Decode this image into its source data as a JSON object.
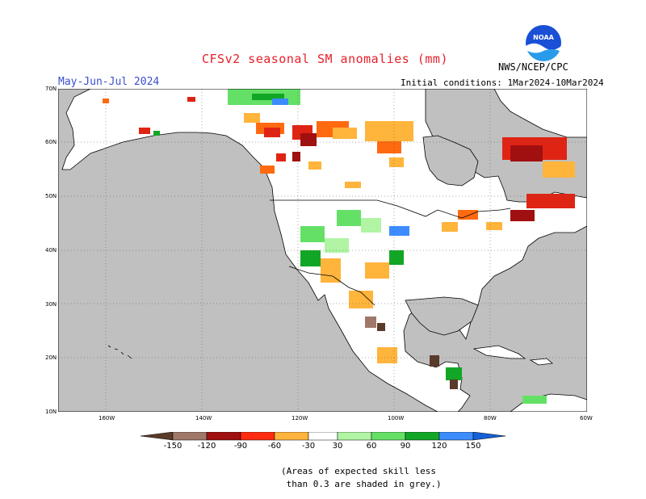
{
  "title": "CFSv2 seasonal SM anomalies (mm)",
  "season": "May-Jun-Jul 2024",
  "initial_conditions": "Initial conditions: 1Mar2024-10Mar2024",
  "agency": "NWS/NCEP/CPC",
  "logo_text": "NOAA",
  "lat_labels": [
    "70N",
    "60N",
    "50N",
    "40N",
    "30N",
    "20N",
    "10N"
  ],
  "lon_labels": [
    "160W",
    "140W",
    "120W",
    "100W",
    "80W",
    "60W"
  ],
  "legend": {
    "ticks": [
      "-150",
      "-120",
      "-90",
      "-60",
      "-30",
      "30",
      "60",
      "90",
      "120",
      "150"
    ],
    "colors": [
      {
        "range": "< -150",
        "hex": "#5a3a28"
      },
      {
        "range": "-150 to -120",
        "hex": "#a0786a"
      },
      {
        "range": "-120 to -90",
        "hex": "#a01010"
      },
      {
        "range": "-90 to -60",
        "hex": "#e02414"
      },
      {
        "range": "-60 to -30",
        "hex": "#ff6a10"
      },
      {
        "range": "-30 to 30",
        "hex": "#ffffff"
      },
      {
        "range": "30 to 60",
        "hex": "#b0f4a4"
      },
      {
        "range": "60 to 90",
        "hex": "#64e066"
      },
      {
        "range": "90 to 120",
        "hex": "#12a626"
      },
      {
        "range": "120 to 150",
        "hex": "#3c8cff"
      },
      {
        "range": "> 150",
        "hex": "#1460d8"
      }
    ],
    "slot_colors": {
      "mid_orange": "#ffb43c"
    }
  },
  "note": "(Areas of expected skill less\n than 0.3 are shaded in grey.)",
  "colors": {
    "ocean": "#c0c0c0",
    "land": "#ffffff",
    "title": "#e8202a",
    "subtitle": "#3b4fd0",
    "noaa_blue": "#1460d8"
  }
}
